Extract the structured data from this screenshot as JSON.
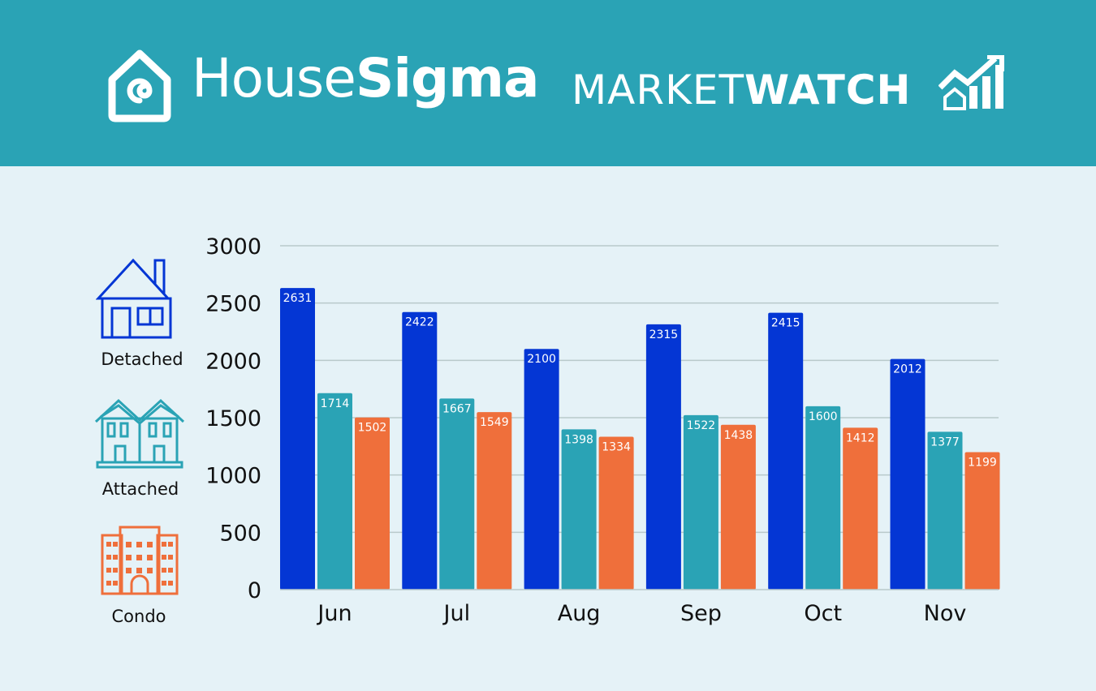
{
  "header": {
    "brand_light": "House",
    "brand_bold": "Sigma",
    "product_light": "MARKET",
    "product_bold": "WATCH",
    "icons": [
      "housesigma-logo-icon",
      "market-growth-icon"
    ]
  },
  "legend": [
    {
      "label": "Detached",
      "icon": "detached-house-icon",
      "color": "#0436d4"
    },
    {
      "label": "Attached",
      "icon": "townhouse-icon",
      "color": "#2aa3b5"
    },
    {
      "label": "Condo",
      "icon": "condo-building-icon",
      "color": "#ef6f3b"
    }
  ],
  "chart_data": {
    "type": "bar",
    "categories": [
      "Jun",
      "Jul",
      "Aug",
      "Sep",
      "Oct",
      "Nov"
    ],
    "series": [
      {
        "name": "Detached",
        "color": "#0436d4",
        "values": [
          2631,
          2422,
          2100,
          2315,
          2415,
          2012
        ]
      },
      {
        "name": "Attached",
        "color": "#2aa3b5",
        "values": [
          1714,
          1667,
          1398,
          1522,
          1600,
          1377
        ]
      },
      {
        "name": "Condo",
        "color": "#ef6f3b",
        "values": [
          1502,
          1549,
          1334,
          1438,
          1412,
          1199
        ]
      }
    ],
    "yticks": [
      "0",
      "500",
      "1000",
      "1500",
      "2000",
      "2500",
      "3000"
    ],
    "ylim": [
      0,
      3000
    ],
    "grid": true,
    "legend_position": "left"
  }
}
